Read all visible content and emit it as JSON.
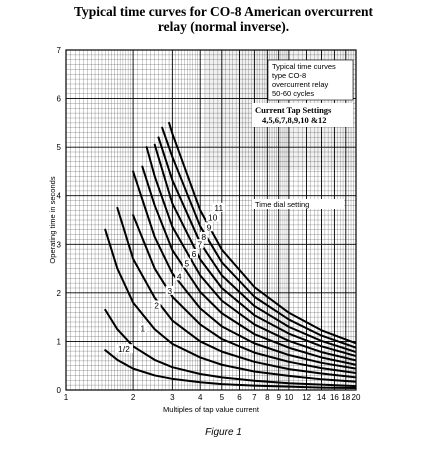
{
  "chart_data": {
    "type": "line",
    "title_line1": "Typical time curves for CO-8 American overcurrent",
    "title_line2": "relay (normal inverse).",
    "xlabel": "Multiples of tap value current",
    "ylabel": "Operating time in seconds",
    "x_scale": "log",
    "xlim": [
      1,
      20
    ],
    "ylim": [
      0,
      7
    ],
    "x_ticks": [
      1,
      2,
      3,
      4,
      5,
      6,
      7,
      8,
      9,
      10,
      12,
      14,
      16,
      18,
      20
    ],
    "x_tick_labels": [
      "1",
      "2",
      "3",
      "4",
      "5",
      "6",
      "7",
      "8",
      "9",
      "10",
      "12",
      "14",
      "16",
      "18",
      "20"
    ],
    "y_ticks": [
      0,
      1,
      2,
      3,
      4,
      5,
      6,
      7
    ],
    "y_tick_labels": [
      "0",
      "1",
      "2",
      "3",
      "4",
      "5",
      "6",
      "7"
    ],
    "grid": true,
    "legend": {
      "position": "top-right",
      "lines": [
        "Typical time curves",
        "type CO-8",
        "overcurrent relay",
        "50-60 cycles"
      ],
      "tap_title": "Current Tap Settings",
      "tap_values": "4,5,6,7,8,9,10 &12"
    },
    "annotation": "Time dial setting",
    "series": [
      {
        "name": "1/2",
        "x": [
          1.5,
          1.7,
          2,
          2.5,
          3,
          4,
          5,
          7,
          10,
          14,
          20
        ],
        "y": [
          0.82,
          0.62,
          0.44,
          0.3,
          0.23,
          0.16,
          0.12,
          0.09,
          0.07,
          0.05,
          0.04
        ]
      },
      {
        "name": "1",
        "x": [
          1.5,
          1.7,
          2,
          2.5,
          3,
          4,
          5,
          7,
          10,
          14,
          20
        ],
        "y": [
          1.65,
          1.25,
          0.9,
          0.62,
          0.47,
          0.33,
          0.26,
          0.19,
          0.14,
          0.11,
          0.08
        ]
      },
      {
        "name": "2",
        "x": [
          1.5,
          1.7,
          2,
          2.5,
          3,
          4,
          5,
          7,
          10,
          14,
          20
        ],
        "y": [
          3.3,
          2.5,
          1.8,
          1.25,
          0.95,
          0.67,
          0.52,
          0.38,
          0.29,
          0.22,
          0.17
        ]
      },
      {
        "name": "3",
        "x": [
          1.7,
          2,
          2.5,
          3,
          4,
          5,
          7,
          10,
          14,
          20
        ],
        "y": [
          3.75,
          2.7,
          1.9,
          1.43,
          1.0,
          0.79,
          0.58,
          0.43,
          0.34,
          0.26
        ]
      },
      {
        "name": "4",
        "x": [
          2,
          2.5,
          3,
          4,
          5,
          7,
          10,
          14,
          20
        ],
        "y": [
          3.6,
          2.5,
          1.92,
          1.35,
          1.05,
          0.77,
          0.58,
          0.45,
          0.35
        ]
      },
      {
        "name": "5",
        "x": [
          2,
          2.5,
          3,
          4,
          5,
          7,
          10,
          14,
          20
        ],
        "y": [
          4.5,
          3.15,
          2.4,
          1.68,
          1.31,
          0.96,
          0.72,
          0.56,
          0.44
        ]
      },
      {
        "name": "6",
        "x": [
          2.2,
          2.5,
          3,
          4,
          5,
          7,
          10,
          14,
          20
        ],
        "y": [
          4.6,
          3.8,
          2.88,
          2.02,
          1.58,
          1.15,
          0.87,
          0.67,
          0.52
        ]
      },
      {
        "name": "7",
        "x": [
          2.3,
          2.5,
          3,
          4,
          5,
          7,
          10,
          14,
          20
        ],
        "y": [
          5.0,
          4.4,
          3.36,
          2.36,
          1.84,
          1.35,
          1.01,
          0.78,
          0.61
        ]
      },
      {
        "name": "8",
        "x": [
          2.5,
          3,
          4,
          5,
          7,
          10,
          14,
          20
        ],
        "y": [
          5.05,
          3.84,
          2.69,
          2.1,
          1.54,
          1.16,
          0.9,
          0.7
        ]
      },
      {
        "name": "9",
        "x": [
          2.6,
          3,
          4,
          5,
          7,
          10,
          14,
          20
        ],
        "y": [
          5.2,
          4.32,
          3.03,
          2.36,
          1.73,
          1.3,
          1.01,
          0.78
        ]
      },
      {
        "name": "10",
        "x": [
          2.7,
          3,
          4,
          5,
          7,
          10,
          14,
          20
        ],
        "y": [
          5.4,
          4.8,
          3.37,
          2.63,
          1.92,
          1.45,
          1.12,
          0.87
        ]
      },
      {
        "name": "11",
        "x": [
          2.9,
          3,
          4,
          5,
          7,
          10,
          14,
          20
        ],
        "y": [
          5.5,
          5.28,
          3.7,
          2.89,
          2.12,
          1.59,
          1.23,
          0.96
        ]
      }
    ],
    "curve_labels": [
      {
        "text": "1/2",
        "x": 1.82,
        "y": 0.82
      },
      {
        "text": "1",
        "x": 2.21,
        "y": 1.25
      },
      {
        "text": "2",
        "x": 2.55,
        "y": 1.72
      },
      {
        "text": "3",
        "x": 2.92,
        "y": 2.02
      },
      {
        "text": "4",
        "x": 3.22,
        "y": 2.32
      },
      {
        "text": "5",
        "x": 3.48,
        "y": 2.58
      },
      {
        "text": "6",
        "x": 3.75,
        "y": 2.78
      },
      {
        "text": "7",
        "x": 3.98,
        "y": 2.98
      },
      {
        "text": "8",
        "x": 4.15,
        "y": 3.13
      },
      {
        "text": "9",
        "x": 4.38,
        "y": 3.33
      },
      {
        "text": "10",
        "x": 4.55,
        "y": 3.53
      },
      {
        "text": "11",
        "x": 4.85,
        "y": 3.73
      }
    ]
  },
  "caption": "Figure 1"
}
